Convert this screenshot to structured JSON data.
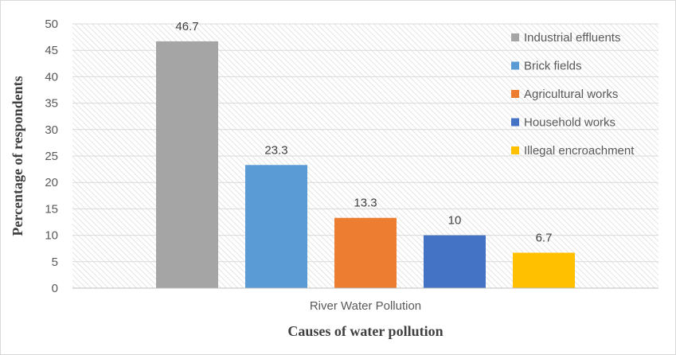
{
  "chart_data": {
    "type": "bar",
    "categories": [
      "River Water Pollution"
    ],
    "series": [
      {
        "name": "Industrial effluents",
        "values": [
          46.7
        ],
        "color": "#a5a5a5"
      },
      {
        "name": "Brick fields",
        "values": [
          23.3
        ],
        "color": "#5b9bd5"
      },
      {
        "name": "Agricultural works",
        "values": [
          13.3
        ],
        "color": "#ed7d31"
      },
      {
        "name": "Household works",
        "values": [
          10
        ],
        "color": "#4472c4"
      },
      {
        "name": "Illegal encroachment",
        "values": [
          6.7
        ],
        "color": "#ffc000"
      }
    ],
    "data_labels": [
      "46.7",
      "23.3",
      "13.3",
      "10",
      "6.7"
    ],
    "xlabel": "Causes of water pollution",
    "ylabel": "Percentage of respondents",
    "ylim": [
      0,
      50
    ],
    "yticks": [
      0,
      5,
      10,
      15,
      20,
      25,
      30,
      35,
      40,
      45,
      50
    ],
    "grid": true,
    "legend_position": "right"
  }
}
